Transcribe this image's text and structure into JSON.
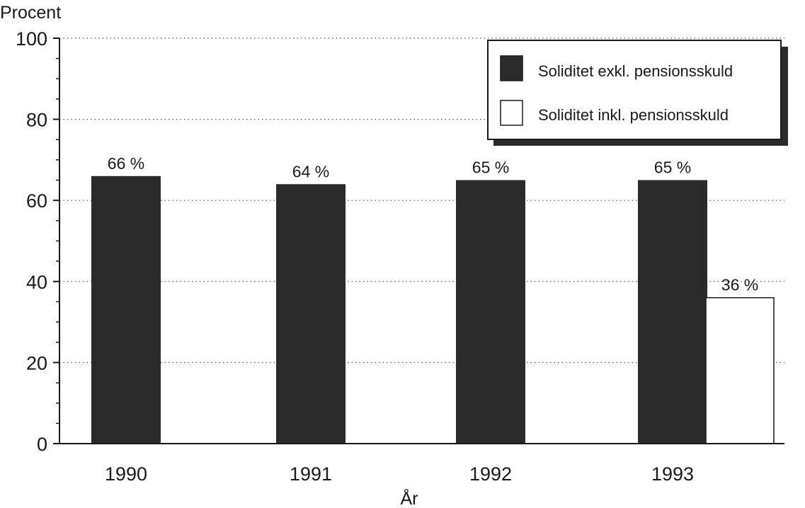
{
  "chart_data": {
    "type": "bar",
    "ylabel": "Procent",
    "xlabel": "År",
    "ylim": [
      0,
      100
    ],
    "yticks": [
      0,
      20,
      40,
      60,
      80,
      100
    ],
    "grid": "horizontal dotted",
    "legend_position": "top-right",
    "categories": [
      "1990",
      "1991",
      "1992",
      "1993"
    ],
    "series": [
      {
        "name": "Soliditet exkl. pensionsskuld",
        "color": "#2b2b2b",
        "values": [
          66,
          64,
          65,
          65
        ],
        "labels": [
          "66 %",
          "64 %",
          "65 %",
          "65 %"
        ]
      },
      {
        "name": "Soliditet inkl. pensionsskuld",
        "color": "#ffffff",
        "values": [
          null,
          null,
          null,
          36
        ],
        "labels": [
          null,
          null,
          null,
          "36 %"
        ]
      }
    ]
  }
}
